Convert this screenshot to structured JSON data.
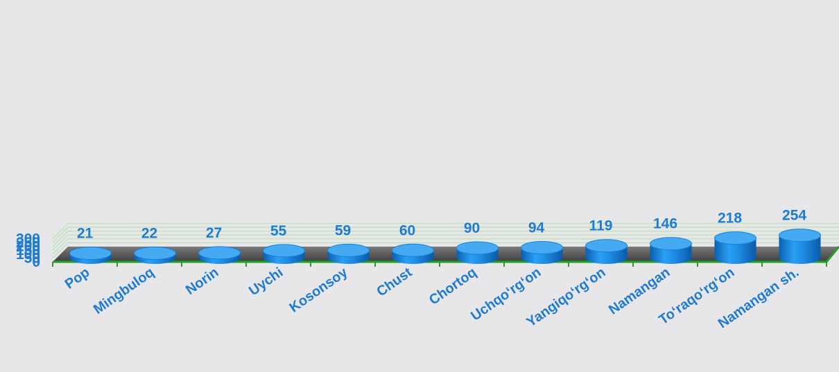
{
  "chart_data": {
    "type": "bar",
    "categories": [
      "Pop",
      "Mingbuloq",
      "Norin",
      "Uychi",
      "Kosonsoy",
      "Chust",
      "Chortoq",
      "Uchqo‘rg‘on",
      "Yangiqo‘rg‘on",
      "Namangan",
      "To‘raqo‘rg‘on",
      "Namangan sh."
    ],
    "values": [
      21,
      22,
      27,
      55,
      59,
      60,
      90,
      94,
      119,
      146,
      218,
      254
    ],
    "data_labels": [
      "21",
      "22",
      "27",
      "55",
      "59",
      "60",
      "90",
      "94",
      "119",
      "146",
      "218",
      "254"
    ],
    "y_ticks": [
      0,
      50,
      100,
      150,
      200,
      250,
      300
    ],
    "ylim": [
      0,
      300
    ],
    "grid": true,
    "legend": "none",
    "style": "3d-cylinder",
    "colors": {
      "bar": "#1f8fe6",
      "bar_dark": "#0b5fb0",
      "bar_top": "#45aaf2",
      "text": "#1e7bd0",
      "gridline": "#c5e2c0",
      "axis": "#22a022",
      "floor": "#5b5b5b",
      "background": "#e7e7ea"
    }
  }
}
